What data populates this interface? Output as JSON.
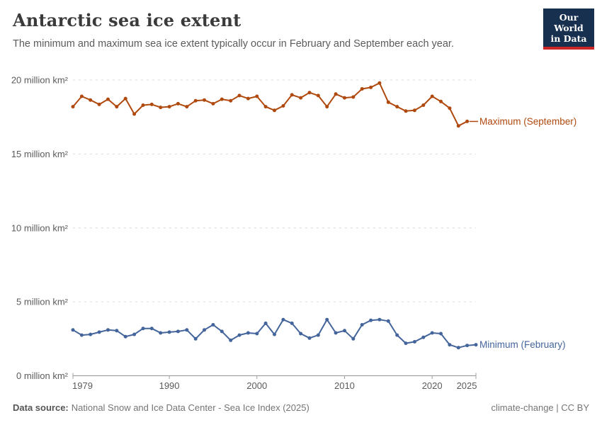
{
  "header": {
    "title": "Antarctic sea ice extent",
    "subtitle": "The minimum and maximum sea ice extent typically occur in February and September each year."
  },
  "logo": {
    "line1": "Our World",
    "line2": "in Data",
    "bg_color": "#18304f",
    "accent_color": "#cd2626"
  },
  "chart_data": {
    "type": "line",
    "title": "Antarctic sea ice extent",
    "xlabel": "",
    "ylabel": "million km²",
    "xlim": [
      1979,
      2025
    ],
    "ylim": [
      0,
      20
    ],
    "grid": "horizontal-dashed",
    "legend_position": "right-end-labels",
    "xticks": [
      {
        "value": 1979,
        "label": "1979"
      },
      {
        "value": 1990,
        "label": "1990"
      },
      {
        "value": 2000,
        "label": "2000"
      },
      {
        "value": 2010,
        "label": "2010"
      },
      {
        "value": 2020,
        "label": "2020"
      },
      {
        "value": 2025,
        "label": "2025"
      }
    ],
    "yticks": [
      {
        "value": 0,
        "label": "0 million km²"
      },
      {
        "value": 5,
        "label": "5 million km²"
      },
      {
        "value": 10,
        "label": "10 million km²"
      },
      {
        "value": 15,
        "label": "15 million km²"
      },
      {
        "value": 20,
        "label": "20 million km²"
      }
    ],
    "series": [
      {
        "name": "Maximum (September)",
        "color": "#b0490e",
        "x": [
          1979,
          1980,
          1981,
          1982,
          1983,
          1984,
          1985,
          1986,
          1987,
          1988,
          1989,
          1990,
          1991,
          1992,
          1993,
          1994,
          1995,
          1996,
          1997,
          1998,
          1999,
          2000,
          2001,
          2002,
          2003,
          2004,
          2005,
          2006,
          2007,
          2008,
          2009,
          2010,
          2011,
          2012,
          2013,
          2014,
          2015,
          2016,
          2017,
          2018,
          2019,
          2020,
          2021,
          2022,
          2023,
          2024
        ],
        "values": [
          18.2,
          18.9,
          18.65,
          18.35,
          18.7,
          18.2,
          18.75,
          17.7,
          18.3,
          18.35,
          18.15,
          18.2,
          18.4,
          18.2,
          18.6,
          18.65,
          18.4,
          18.7,
          18.6,
          18.95,
          18.75,
          18.9,
          18.2,
          17.95,
          18.25,
          19.0,
          18.8,
          19.15,
          18.95,
          18.2,
          19.05,
          18.8,
          18.85,
          19.4,
          19.5,
          19.8,
          18.5,
          18.2,
          17.9,
          17.95,
          18.3,
          18.9,
          18.55,
          18.1,
          16.9,
          17.2
        ]
      },
      {
        "name": "Minimum (February)",
        "color": "#44659b",
        "x": [
          1979,
          1980,
          1981,
          1982,
          1983,
          1984,
          1985,
          1986,
          1987,
          1988,
          1989,
          1990,
          1991,
          1992,
          1993,
          1994,
          1995,
          1996,
          1997,
          1998,
          1999,
          2000,
          2001,
          2002,
          2003,
          2004,
          2005,
          2006,
          2007,
          2008,
          2009,
          2010,
          2011,
          2012,
          2013,
          2014,
          2015,
          2016,
          2017,
          2018,
          2019,
          2020,
          2021,
          2022,
          2023,
          2024,
          2025
        ],
        "values": [
          3.1,
          2.75,
          2.8,
          2.95,
          3.1,
          3.05,
          2.65,
          2.8,
          3.2,
          3.2,
          2.9,
          2.95,
          3.0,
          3.1,
          2.5,
          3.1,
          3.45,
          3.0,
          2.4,
          2.75,
          2.9,
          2.85,
          3.55,
          2.8,
          3.8,
          3.55,
          2.85,
          2.55,
          2.75,
          3.8,
          2.9,
          3.05,
          2.5,
          3.45,
          3.75,
          3.8,
          3.7,
          2.75,
          2.2,
          2.3,
          2.6,
          2.9,
          2.85,
          2.1,
          1.9,
          2.05,
          2.1
        ]
      }
    ]
  },
  "footer": {
    "source_label": "Data source:",
    "source_value": "National Snow and Ice Data Center - Sea Ice Index (2025)",
    "right_text": "climate-change | CC BY"
  }
}
